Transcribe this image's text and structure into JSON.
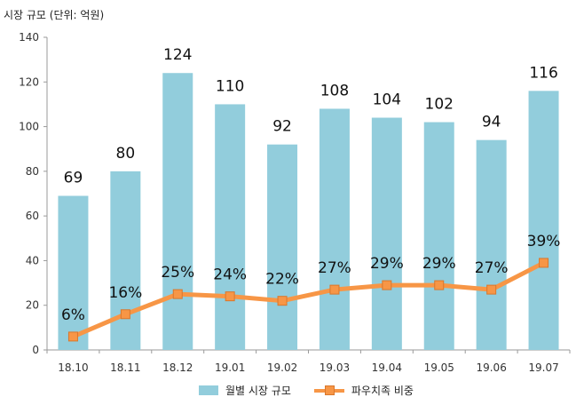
{
  "title": "시장 규모 (단위: 억원)",
  "colors": {
    "bar": "#92cddc",
    "line": "#f79646",
    "marker_border": "#d9772c"
  },
  "chart_data": {
    "type": "bar+line",
    "title": "시장 규모 (단위: 억원)",
    "categories": [
      "18.10",
      "18.11",
      "18.12",
      "19.01",
      "19.02",
      "19.03",
      "19.04",
      "19.05",
      "19.06",
      "19.07"
    ],
    "ylim": [
      0,
      140
    ],
    "yticks": [
      0,
      20,
      40,
      60,
      80,
      100,
      120,
      140
    ],
    "grid": false,
    "legend_position": "bottom",
    "series": [
      {
        "name": "월별 시장 규모",
        "type": "bar",
        "values": [
          69,
          80,
          124,
          110,
          92,
          108,
          104,
          102,
          94,
          116
        ],
        "labels": [
          "69",
          "80",
          "124",
          "110",
          "92",
          "108",
          "104",
          "102",
          "94",
          "116"
        ]
      },
      {
        "name": "파우치족 비중",
        "type": "line",
        "marker": "square",
        "values": [
          6,
          16,
          25,
          24,
          22,
          27,
          29,
          29,
          27,
          39
        ],
        "labels": [
          "6%",
          "16%",
          "25%",
          "24%",
          "22%",
          "27%",
          "29%",
          "29%",
          "27%",
          "39%"
        ]
      }
    ]
  }
}
